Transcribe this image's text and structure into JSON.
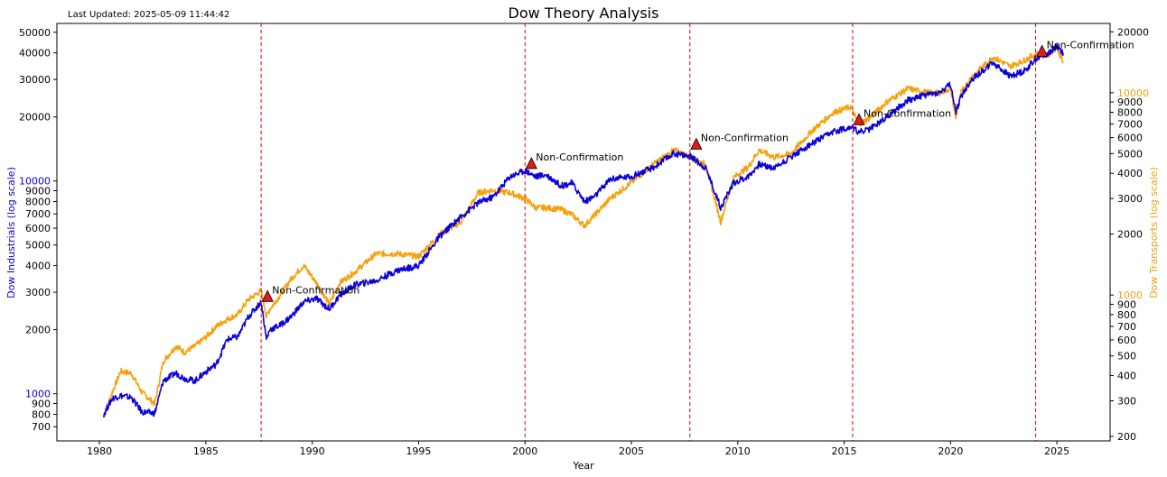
{
  "chart_data": {
    "type": "line",
    "title": "Dow Theory Analysis",
    "subtitle": "Last Updated: 2025-05-09 11:44:42",
    "xlabel": "Year",
    "ylabel_left": "Dow Industrials (log scale)",
    "ylabel_right": "Dow Transports (log scale)",
    "xlim": [
      1978.0,
      2027.5
    ],
    "ylim_left": [
      600,
      55000
    ],
    "ylim_right": [
      190,
      22000
    ],
    "y_scale": "log",
    "grid": false,
    "legend": "none",
    "x_ticks": [
      1980,
      1985,
      1990,
      1995,
      2000,
      2005,
      2010,
      2015,
      2020,
      2025
    ],
    "left_ticks": [
      {
        "v": 700,
        "label": "700"
      },
      {
        "v": 800,
        "label": "800"
      },
      {
        "v": 900,
        "label": "900"
      },
      {
        "v": 1000,
        "label": "1000"
      },
      {
        "v": 2000,
        "label": "2000"
      },
      {
        "v": 3000,
        "label": "3000"
      },
      {
        "v": 4000,
        "label": "4000"
      },
      {
        "v": 5000,
        "label": "5000"
      },
      {
        "v": 6000,
        "label": "6000"
      },
      {
        "v": 7000,
        "label": "7000"
      },
      {
        "v": 8000,
        "label": "8000"
      },
      {
        "v": 9000,
        "label": "9000"
      },
      {
        "v": 10000,
        "label": "10000"
      },
      {
        "v": 20000,
        "label": "20000"
      },
      {
        "v": 30000,
        "label": "30000"
      },
      {
        "v": 40000,
        "label": "40000"
      },
      {
        "v": 50000,
        "label": "50000"
      }
    ],
    "right_ticks": [
      {
        "v": 200,
        "label": "200"
      },
      {
        "v": 300,
        "label": "300"
      },
      {
        "v": 400,
        "label": "400"
      },
      {
        "v": 500,
        "label": "500"
      },
      {
        "v": 600,
        "label": "600"
      },
      {
        "v": 700,
        "label": "700"
      },
      {
        "v": 800,
        "label": "800"
      },
      {
        "v": 900,
        "label": "900"
      },
      {
        "v": 1000,
        "label": "1000"
      },
      {
        "v": 2000,
        "label": "2000"
      },
      {
        "v": 3000,
        "label": "3000"
      },
      {
        "v": 4000,
        "label": "4000"
      },
      {
        "v": 5000,
        "label": "5000"
      },
      {
        "v": 6000,
        "label": "6000"
      },
      {
        "v": 7000,
        "label": "7000"
      },
      {
        "v": 8000,
        "label": "8000"
      },
      {
        "v": 9000,
        "label": "9000"
      },
      {
        "v": 10000,
        "label": "10000"
      },
      {
        "v": 20000,
        "label": "20000"
      }
    ],
    "series": [
      {
        "axis": "left",
        "color": "#0b00d8",
        "x": [
          1980.2,
          1980.6,
          1981.0,
          1981.5,
          1982.0,
          1982.6,
          1983.0,
          1983.6,
          1984.0,
          1984.5,
          1985.0,
          1985.5,
          1986.0,
          1986.5,
          1987.0,
          1987.6,
          1987.85,
          1988.0,
          1988.5,
          1989.0,
          1989.6,
          1990.2,
          1990.8,
          1991.3,
          1992.0,
          1993.0,
          1994.0,
          1995.0,
          1996.0,
          1997.0,
          1997.8,
          1998.5,
          1999.3,
          2000.0,
          2000.5,
          2001.0,
          2001.7,
          2002.2,
          2002.8,
          2003.3,
          2004.0,
          2005.0,
          2006.0,
          2007.0,
          2007.8,
          2008.5,
          2009.2,
          2009.8,
          2010.5,
          2011.0,
          2011.7,
          2012.5,
          2013.5,
          2014.5,
          2015.3,
          2015.7,
          2016.2,
          2017.0,
          2018.0,
          2018.9,
          2019.5,
          2020.0,
          2020.25,
          2020.5,
          2021.0,
          2022.0,
          2022.8,
          2023.5,
          2024.0,
          2024.6,
          2025.0,
          2025.3
        ],
        "y": [
          800,
          950,
          980,
          960,
          820,
          810,
          1150,
          1250,
          1180,
          1150,
          1270,
          1380,
          1800,
          1850,
          2300,
          2700,
          1800,
          2000,
          2100,
          2300,
          2700,
          2800,
          2500,
          2900,
          3250,
          3400,
          3800,
          4000,
          5500,
          6800,
          7900,
          8400,
          10500,
          11200,
          10500,
          10700,
          9500,
          9800,
          8000,
          8500,
          10200,
          10500,
          11500,
          13500,
          13000,
          11500,
          7500,
          9800,
          10500,
          12000,
          11500,
          13000,
          15000,
          17000,
          18000,
          17000,
          17500,
          20000,
          24000,
          25500,
          26000,
          28500,
          21000,
          25000,
          30000,
          36000,
          31000,
          33000,
          37500,
          40000,
          43000,
          40000
        ]
      },
      {
        "axis": "right",
        "color": "#f5a10d",
        "x": [
          1980.2,
          1980.6,
          1981.0,
          1981.5,
          1982.0,
          1982.6,
          1983.0,
          1983.6,
          1984.0,
          1984.5,
          1985.0,
          1985.5,
          1986.0,
          1986.5,
          1987.0,
          1987.6,
          1987.85,
          1988.0,
          1988.5,
          1989.0,
          1989.6,
          1990.2,
          1990.8,
          1991.3,
          1992.0,
          1993.0,
          1994.0,
          1995.0,
          1996.0,
          1997.0,
          1997.8,
          1998.5,
          1999.3,
          2000.0,
          2000.5,
          2001.0,
          2001.7,
          2002.2,
          2002.8,
          2003.3,
          2004.0,
          2005.0,
          2006.0,
          2007.0,
          2007.8,
          2008.5,
          2009.2,
          2009.8,
          2010.5,
          2011.0,
          2011.7,
          2012.5,
          2013.5,
          2014.5,
          2015.3,
          2015.7,
          2016.2,
          2017.0,
          2018.0,
          2018.9,
          2019.5,
          2020.0,
          2020.25,
          2020.5,
          2021.0,
          2022.0,
          2022.8,
          2023.5,
          2024.0,
          2024.6,
          2025.0,
          2025.3
        ],
        "y": [
          250,
          330,
          420,
          410,
          330,
          290,
          470,
          560,
          520,
          560,
          620,
          700,
          760,
          800,
          950,
          1050,
          780,
          850,
          1000,
          1200,
          1400,
          1150,
          900,
          1150,
          1300,
          1600,
          1600,
          1550,
          2000,
          2300,
          3200,
          3300,
          3200,
          3000,
          2700,
          2700,
          2650,
          2500,
          2200,
          2500,
          3000,
          3600,
          4400,
          5200,
          4800,
          4400,
          2300,
          3800,
          4300,
          5200,
          4800,
          5000,
          6500,
          8000,
          8500,
          7000,
          7500,
          9000,
          10500,
          10000,
          10000,
          10500,
          7500,
          10000,
          12000,
          15000,
          13500,
          14500,
          15500,
          15500,
          16800,
          14000
        ]
      }
    ],
    "vlines": [
      1987.6,
      2000.0,
      2007.75,
      2015.4,
      2024.0
    ],
    "annotations": [
      {
        "x": 1987.9,
        "y": 2850,
        "text": "Non-Confirmation"
      },
      {
        "x": 2000.3,
        "y": 12000,
        "text": "Non-Confirmation"
      },
      {
        "x": 2008.05,
        "y": 14800,
        "text": "Non-Confirmation"
      },
      {
        "x": 2015.7,
        "y": 19300,
        "text": "Non-Confirmation"
      },
      {
        "x": 2024.3,
        "y": 40500,
        "text": "Non-Confirmation"
      }
    ]
  }
}
